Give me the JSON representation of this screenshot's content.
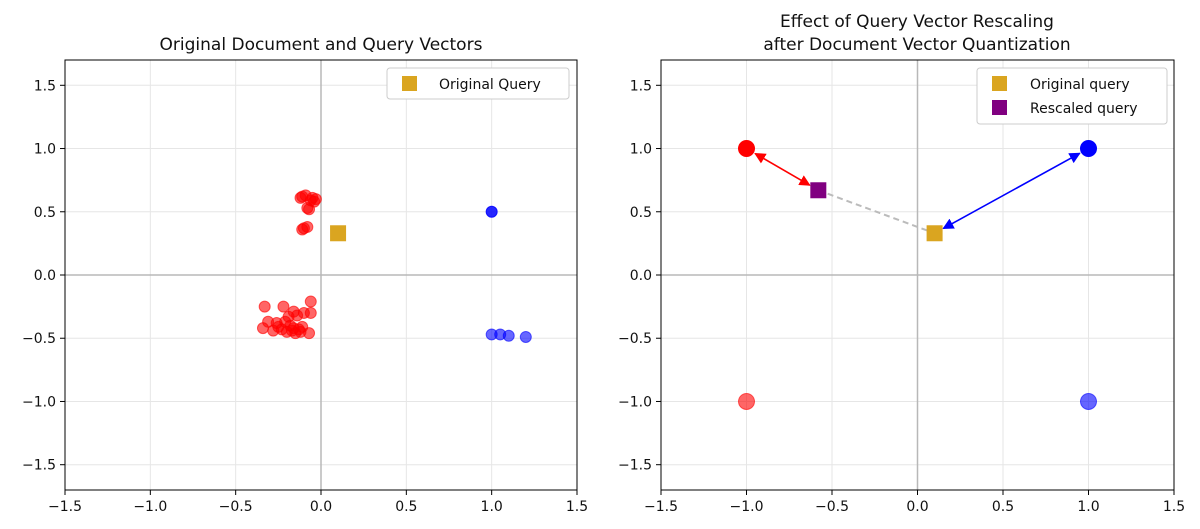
{
  "chart_data": [
    {
      "type": "scatter",
      "title": "Original Document and Query Vectors",
      "xlim": [
        -1.5,
        1.5
      ],
      "ylim": [
        -1.7,
        1.7
      ],
      "xticks": [
        -1.5,
        -1.0,
        -0.5,
        0.0,
        0.5,
        1.0,
        1.5
      ],
      "xtick_labels": [
        "−1.5",
        "−1.0",
        "−0.5",
        "0.0",
        "0.5",
        "1.0",
        "1.5"
      ],
      "yticks": [
        -1.5,
        -1.0,
        -0.5,
        0.0,
        0.5,
        1.0,
        1.5
      ],
      "ytick_labels": [
        "−1.5",
        "−1.0",
        "−0.5",
        "0.0",
        "0.5",
        "1.0",
        "1.5"
      ],
      "legend_position": "top-right",
      "legend": [
        {
          "label": "Original Query",
          "color": "#DAA520",
          "marker": "square"
        }
      ],
      "series": [
        {
          "name": "red-doc-upper",
          "color": "#ff0000",
          "points": [
            [
              -0.11,
              0.62
            ],
            [
              -0.09,
              0.63
            ],
            [
              -0.06,
              0.59
            ],
            [
              -0.03,
              0.6
            ],
            [
              -0.04,
              0.58
            ],
            [
              -0.07,
              0.52
            ],
            [
              -0.08,
              0.53
            ],
            [
              -0.12,
              0.61
            ],
            [
              -0.05,
              0.61
            ],
            [
              -0.1,
              0.37
            ],
            [
              -0.08,
              0.38
            ],
            [
              -0.11,
              0.36
            ]
          ]
        },
        {
          "name": "red-doc-lower",
          "color": "#ff0000",
          "points": [
            [
              -0.33,
              -0.25
            ],
            [
              -0.22,
              -0.25
            ],
            [
              -0.06,
              -0.21
            ],
            [
              -0.16,
              -0.29
            ],
            [
              -0.1,
              -0.3
            ],
            [
              -0.06,
              -0.3
            ],
            [
              -0.31,
              -0.37
            ],
            [
              -0.26,
              -0.38
            ],
            [
              -0.19,
              -0.33
            ],
            [
              -0.14,
              -0.32
            ],
            [
              -0.21,
              -0.37
            ],
            [
              -0.11,
              -0.41
            ],
            [
              -0.34,
              -0.42
            ],
            [
              -0.28,
              -0.44
            ],
            [
              -0.23,
              -0.43
            ],
            [
              -0.2,
              -0.45
            ],
            [
              -0.17,
              -0.44
            ],
            [
              -0.15,
              -0.46
            ],
            [
              -0.13,
              -0.43
            ],
            [
              -0.07,
              -0.46
            ],
            [
              -0.18,
              -0.4
            ],
            [
              -0.25,
              -0.41
            ],
            [
              -0.12,
              -0.45
            ],
            [
              -0.16,
              -0.42
            ]
          ]
        },
        {
          "name": "blue-doc",
          "color": "#0000ff",
          "points": [
            [
              1.0,
              0.5
            ],
            [
              1.0,
              -0.47
            ],
            [
              1.05,
              -0.47
            ],
            [
              1.1,
              -0.48
            ],
            [
              1.2,
              -0.49
            ]
          ]
        },
        {
          "name": "query",
          "color": "#DAA520",
          "marker": "square",
          "points": [
            [
              0.1,
              0.33
            ]
          ]
        }
      ]
    },
    {
      "type": "scatter",
      "title": "Effect of Query Vector Rescaling",
      "subtitle": "after Document Vector Quantization",
      "xlim": [
        -1.5,
        1.5
      ],
      "ylim": [
        -1.7,
        1.7
      ],
      "xticks": [
        -1.5,
        -1.0,
        -0.5,
        0.0,
        0.5,
        1.0,
        1.5
      ],
      "xtick_labels": [
        "−1.5",
        "−1.0",
        "−0.5",
        "0.0",
        "0.5",
        "1.0",
        "1.5"
      ],
      "yticks": [
        -1.5,
        -1.0,
        -0.5,
        0.0,
        0.5,
        1.0,
        1.5
      ],
      "ytick_labels": [
        "−1.5",
        "−1.0",
        "−0.5",
        "0.0",
        "0.5",
        "1.0",
        "1.5"
      ],
      "legend_position": "top-right",
      "legend": [
        {
          "label": "Original query",
          "color": "#DAA520",
          "marker": "square"
        },
        {
          "label": "Rescaled query",
          "color": "#800080",
          "marker": "square"
        }
      ],
      "series": [
        {
          "name": "red-quantized",
          "color": "#ff0000",
          "points": [
            [
              -1,
              1
            ],
            [
              -1,
              -1
            ]
          ]
        },
        {
          "name": "blue-quantized",
          "color": "#0000ff",
          "points": [
            [
              1,
              1
            ],
            [
              1,
              -1
            ]
          ]
        },
        {
          "name": "original-query",
          "color": "#DAA520",
          "marker": "square",
          "points": [
            [
              0.1,
              0.33
            ]
          ]
        },
        {
          "name": "rescaled-query",
          "color": "#800080",
          "marker": "square",
          "points": [
            [
              -0.58,
              0.67
            ]
          ]
        }
      ],
      "arrows": [
        {
          "from": [
            -0.58,
            0.67
          ],
          "to": [
            -1,
            1
          ],
          "color": "#ff0000",
          "style": "double"
        },
        {
          "from": [
            0.1,
            0.33
          ],
          "to": [
            1,
            1
          ],
          "color": "#0000ff",
          "style": "double"
        },
        {
          "from": [
            -0.58,
            0.67
          ],
          "to": [
            0.1,
            0.33
          ],
          "color": "#bbbbbb",
          "style": "dashed"
        }
      ]
    }
  ]
}
